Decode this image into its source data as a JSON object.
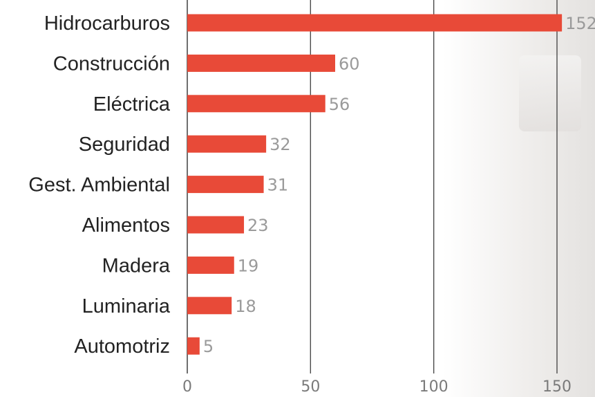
{
  "chart_data": {
    "type": "bar",
    "orientation": "horizontal",
    "categories": [
      "Hidrocarburos",
      "Construcción",
      "Eléctrica",
      "Seguridad",
      "Gest. Ambiental",
      "Alimentos",
      "Madera",
      "Luminaria",
      "Automotriz"
    ],
    "values": [
      152,
      60,
      56,
      32,
      31,
      23,
      19,
      18,
      5
    ],
    "value_labels": [
      "152",
      "60",
      "56",
      "32",
      "31",
      "23",
      "19",
      "18",
      "5"
    ],
    "xticks": [
      0,
      50,
      100,
      150
    ],
    "xtick_labels": [
      "0",
      "50",
      "100",
      "150"
    ],
    "xlim": [
      0,
      150
    ],
    "grid": true,
    "title": "",
    "xlabel": "",
    "ylabel": "",
    "colors": {
      "bar": "#e84a38",
      "grid": "#4a4a4a"
    }
  }
}
